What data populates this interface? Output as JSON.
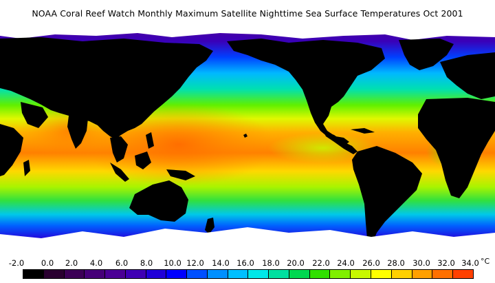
{
  "title": "NOAA Coral Reef Watch Monthly Maximum Satellite Nighttime Sea Surface Temperatures    Oct 2001",
  "unit": "°C",
  "scale": {
    "labels": [
      "-2.0",
      "0.0",
      "2.0",
      "4.0",
      "6.0",
      "8.0",
      "10.0",
      "12.0",
      "14.0",
      "16.0",
      "18.0",
      "20.0",
      "22.0",
      "24.0",
      "26.0",
      "28.0",
      "30.0",
      "32.0",
      "34.0"
    ],
    "colors": [
      "#000000",
      "#2a0030",
      "#3c0056",
      "#460078",
      "#4b0095",
      "#3f00b4",
      "#2000d8",
      "#0000ff",
      "#0050ff",
      "#0090ff",
      "#00c0ff",
      "#00e8e8",
      "#00e0a0",
      "#00d850",
      "#30e000",
      "#80f000",
      "#c8f800",
      "#ffff00",
      "#ffd000",
      "#ffa000",
      "#ff7000",
      "#ff4000"
    ]
  },
  "colors": {
    "land": "#000000",
    "ice": "#ffffff"
  }
}
